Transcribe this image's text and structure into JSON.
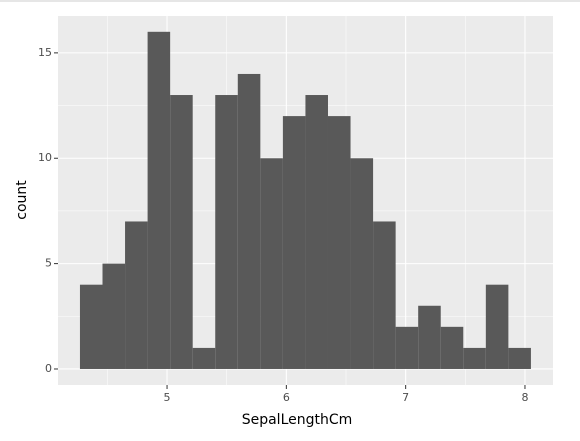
{
  "chart_data": {
    "type": "histogram",
    "x_label": "SepalLengthCm",
    "y_label": "count",
    "bins": [
      4.27,
      4.459,
      4.648,
      4.837,
      5.026,
      5.215,
      5.404,
      5.593,
      5.782,
      5.971,
      6.16,
      6.349,
      6.538,
      6.727,
      6.916,
      7.105,
      7.294,
      7.483,
      7.672,
      7.861,
      8.05
    ],
    "values": [
      4,
      5,
      7,
      16,
      13,
      1,
      13,
      14,
      10,
      12,
      13,
      12,
      10,
      7,
      2,
      3,
      2,
      1,
      4,
      1
    ],
    "color": "#595959",
    "xlim": [
      4.086,
      8.235
    ],
    "ylim": [
      -0.76,
      16.75
    ],
    "xticks": [
      5,
      6,
      7,
      8
    ],
    "yticks": [
      0,
      5,
      10,
      15
    ],
    "grid": true
  }
}
